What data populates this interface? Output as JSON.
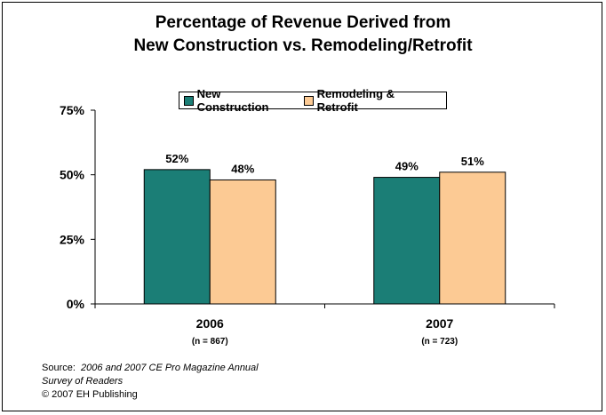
{
  "title_line1": "Percentage of Revenue Derived from",
  "title_line2": "New Construction vs. Remodeling/Retrofit",
  "source": {
    "prefix": "Source:",
    "line1_italic": "2006 and 2007 CE Pro Magazine Annual",
    "line2_italic": "Survey of Readers",
    "line3": "© 2007 EH Publishing"
  },
  "colors": {
    "new_construction": "#1b7e76",
    "remodeling": "#fcca94"
  },
  "chart_data": {
    "type": "bar",
    "categories": [
      "2006",
      "2007"
    ],
    "category_notes": [
      "(n = 867)",
      "(n = 723)"
    ],
    "series": [
      {
        "name": "New Construction",
        "values": [
          52,
          49
        ],
        "labels": [
          "52%",
          "49%"
        ]
      },
      {
        "name": "Remodeling & Retrofit",
        "values": [
          48,
          51
        ],
        "labels": [
          "48%",
          "51%"
        ]
      }
    ],
    "ylim": [
      0,
      75
    ],
    "yticks": [
      0,
      25,
      50,
      75
    ],
    "ytick_labels": [
      "0%",
      "25%",
      "50%",
      "75%"
    ],
    "legend_position": "top",
    "grid": false
  }
}
